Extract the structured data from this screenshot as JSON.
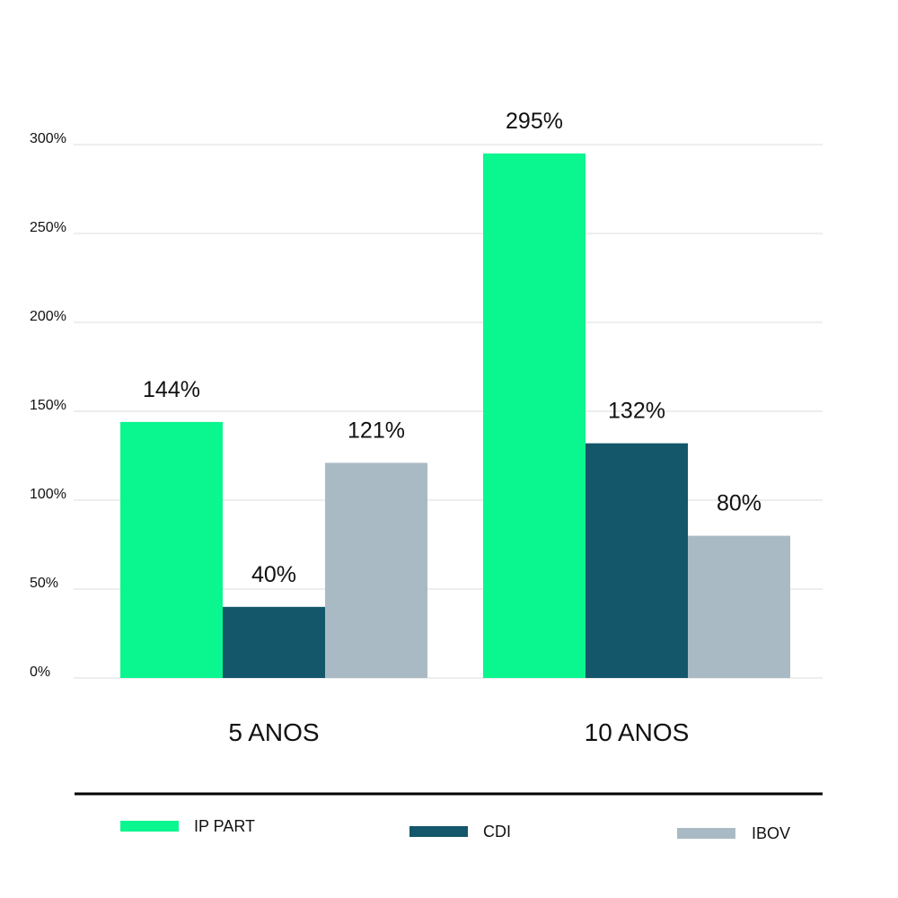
{
  "chart_data": {
    "type": "bar",
    "categories": [
      "5 ANOS",
      "10 ANOS"
    ],
    "series": [
      {
        "name": "IP PART",
        "values": [
          144,
          295
        ],
        "labels": [
          "144%",
          "295%"
        ],
        "color": "#0af68f"
      },
      {
        "name": "CDI",
        "values": [
          40,
          132
        ],
        "labels": [
          "40%",
          "132%"
        ],
        "color": "#14566a"
      },
      {
        "name": "IBOV",
        "values": [
          121,
          80
        ],
        "labels": [
          "121%",
          "80%"
        ],
        "color": "#aabac4"
      }
    ],
    "yticks": [
      "0%",
      "50%",
      "100%",
      "150%",
      "200%",
      "250%",
      "300%"
    ],
    "ytick_values": [
      0,
      50,
      100,
      150,
      200,
      250,
      300
    ],
    "ylim": [
      0,
      300
    ],
    "grid": true,
    "legend_position": "bottom"
  }
}
